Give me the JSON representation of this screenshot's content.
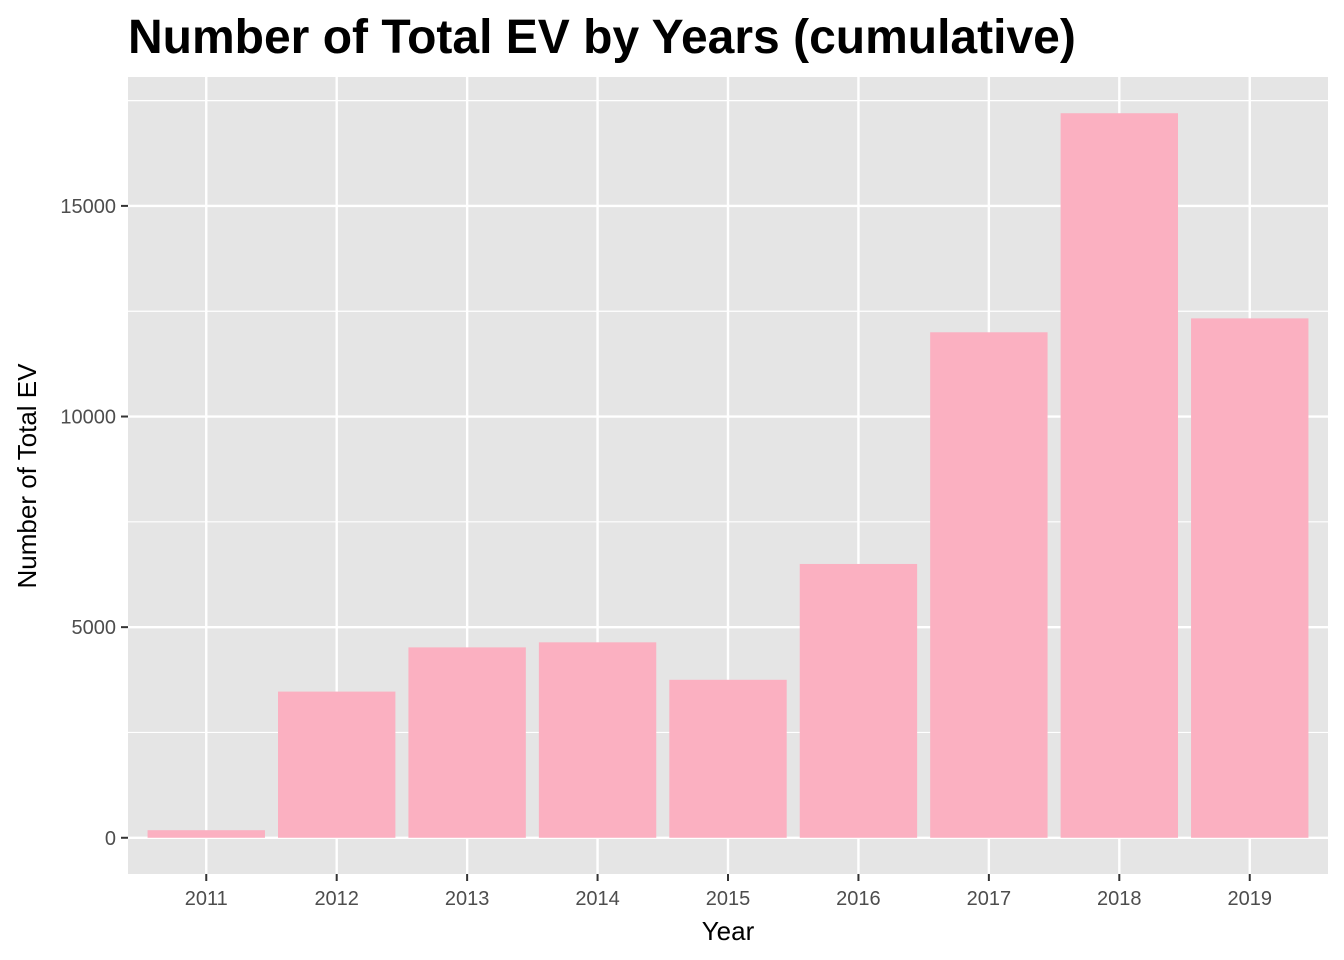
{
  "chart_data": {
    "type": "bar",
    "title": "Number of Total EV by Years (cumulative)",
    "xlabel": "Year",
    "ylabel": "Number of Total EV",
    "categories": [
      "2011",
      "2012",
      "2013",
      "2014",
      "2015",
      "2016",
      "2017",
      "2018",
      "2019"
    ],
    "values": [
      180,
      3470,
      4520,
      4640,
      3750,
      6500,
      12000,
      17200,
      12330
    ],
    "ylim": [
      -860,
      18060
    ],
    "yticks": [
      0,
      5000,
      10000,
      15000
    ],
    "ytick_labels": [
      "0",
      "5000",
      "10000",
      "15000"
    ],
    "grid": true,
    "legend": "none",
    "colors": {
      "bar": "#fbb0c1",
      "panel": "#e5e5e5",
      "grid": "#ffffff",
      "tick_text": "#4d4d4d",
      "text": "#000000"
    }
  }
}
